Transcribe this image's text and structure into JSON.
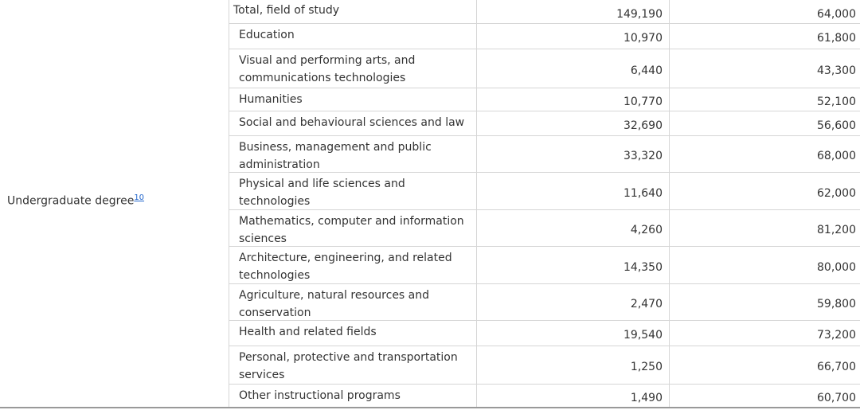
{
  "table": {
    "group_label": "Undergraduate degree",
    "group_footnote": "10",
    "rows": [
      [
        "Total, field of study",
        "149,190",
        "64,000"
      ],
      [
        "Education",
        "10,970",
        "61,800"
      ],
      [
        "Visual and performing arts, and communications technologies",
        "6,440",
        "43,300"
      ],
      [
        "Humanities",
        "10,770",
        "52,100"
      ],
      [
        "Social and behavioural sciences and law",
        "32,690",
        "56,600"
      ],
      [
        "Business, management and public administration",
        "33,320",
        "68,000"
      ],
      [
        "Physical and life sciences and technologies",
        "11,640",
        "62,000"
      ],
      [
        "Mathematics, computer and information sciences",
        "4,260",
        "81,200"
      ],
      [
        "Architecture, engineering, and related technologies",
        "14,350",
        "80,000"
      ],
      [
        "Agriculture, natural resources and conservation",
        "2,470",
        "59,800"
      ],
      [
        "Health and related fields",
        "19,540",
        "73,200"
      ],
      [
        "Personal, protective and transportation services",
        "1,250",
        "66,700"
      ],
      [
        "Other instructional programs",
        "1,490",
        "60,700"
      ]
    ]
  }
}
